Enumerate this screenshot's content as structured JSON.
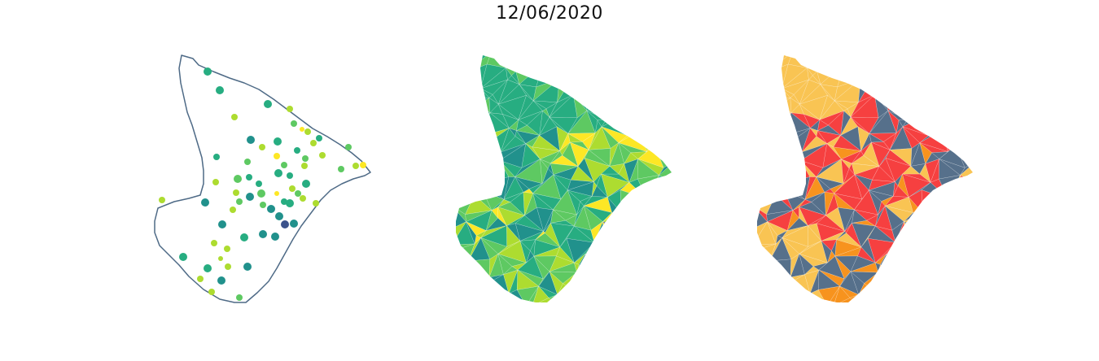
{
  "title": "12/06/2020",
  "colors": {
    "outline": "#4e6a86",
    "viridis": [
      "#3b528b",
      "#21918c",
      "#27ad81",
      "#5ec962",
      "#addc30",
      "#fde725"
    ],
    "categories": {
      "slate": "#56708b",
      "red": "#f64040",
      "yellow": "#f9c453",
      "orange": "#f7931e"
    }
  },
  "maps": [
    {
      "name": "proportional-symbol-map"
    },
    {
      "name": "continuous-choropleth-map"
    },
    {
      "name": "categorical-choropleth-map"
    }
  ]
}
